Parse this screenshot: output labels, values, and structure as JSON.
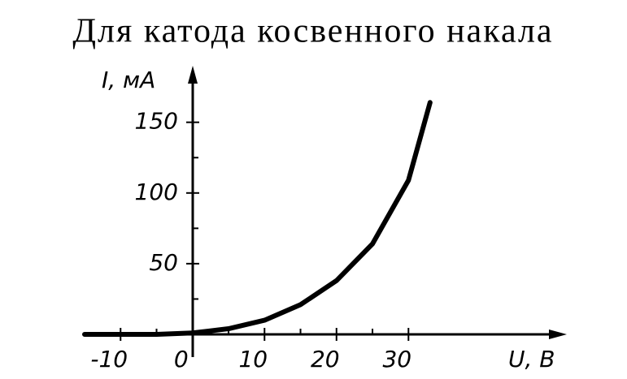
{
  "chart_data": {
    "type": "line",
    "title": "Для катода косвенного накала",
    "y_label": "I, мА",
    "x_label": "U, В",
    "x": [
      -15,
      -10,
      -5,
      0,
      5,
      10,
      15,
      20,
      25,
      30,
      33
    ],
    "series": [
      {
        "name": "I",
        "color": "#000000",
        "values": [
          0,
          0,
          0,
          1,
          4,
          10,
          21,
          38,
          64,
          109,
          164
        ]
      }
    ],
    "xlim": [
      -15,
      52
    ],
    "ylim": [
      0,
      190
    ],
    "xticks": [
      -10,
      0,
      10,
      20,
      30
    ],
    "yticks": [
      50,
      100,
      150
    ],
    "xminorticks": [
      -5,
      5,
      15,
      25
    ],
    "yminorticks": [
      25,
      75,
      125
    ],
    "grid": false
  }
}
